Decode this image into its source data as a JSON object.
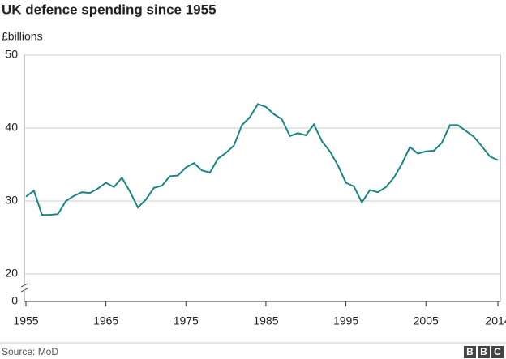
{
  "chart_data": {
    "type": "line",
    "title": "UK defence spending since 1955",
    "y_label": "£billions",
    "x": [
      1955,
      1956,
      1957,
      1958,
      1959,
      1960,
      1961,
      1962,
      1963,
      1964,
      1965,
      1966,
      1967,
      1968,
      1969,
      1970,
      1971,
      1972,
      1973,
      1974,
      1975,
      1976,
      1977,
      1978,
      1979,
      1980,
      1981,
      1982,
      1983,
      1984,
      1985,
      1986,
      1987,
      1988,
      1989,
      1990,
      1991,
      1992,
      1993,
      1994,
      1995,
      1996,
      1997,
      1998,
      1999,
      2000,
      2001,
      2002,
      2003,
      2004,
      2005,
      2006,
      2007,
      2008,
      2009,
      2010,
      2011,
      2012,
      2013,
      2014
    ],
    "series": [
      {
        "color": "#1b8584",
        "values": [
          30.6,
          31.4,
          28.1,
          28.1,
          28.2,
          30.0,
          30.7,
          31.2,
          31.1,
          31.7,
          32.5,
          31.9,
          33.2,
          31.3,
          29.1,
          30.2,
          31.8,
          32.1,
          33.4,
          33.5,
          34.6,
          35.2,
          34.2,
          33.9,
          35.8,
          36.6,
          37.6,
          40.4,
          41.5,
          43.3,
          42.9,
          41.9,
          41.2,
          38.9,
          39.3,
          39.0,
          40.5,
          38.2,
          36.8,
          34.9,
          32.5,
          32.0,
          29.8,
          31.5,
          31.2,
          31.9,
          33.2,
          35.1,
          37.4,
          36.5,
          36.8,
          36.9,
          38.0,
          40.4,
          40.4,
          39.6,
          38.8,
          37.5,
          36.1,
          35.6
        ]
      }
    ],
    "xlim": [
      1955,
      2014
    ],
    "xticks": [
      1955,
      1965,
      1975,
      1985,
      1995,
      2005,
      2014
    ],
    "ylim": [
      0,
      50
    ],
    "yticks": [
      0,
      20,
      30,
      40,
      50
    ],
    "axis_break": [
      0,
      20
    ],
    "grid": true,
    "source": "Source: MoD",
    "logo": [
      "B",
      "B",
      "C"
    ]
  }
}
